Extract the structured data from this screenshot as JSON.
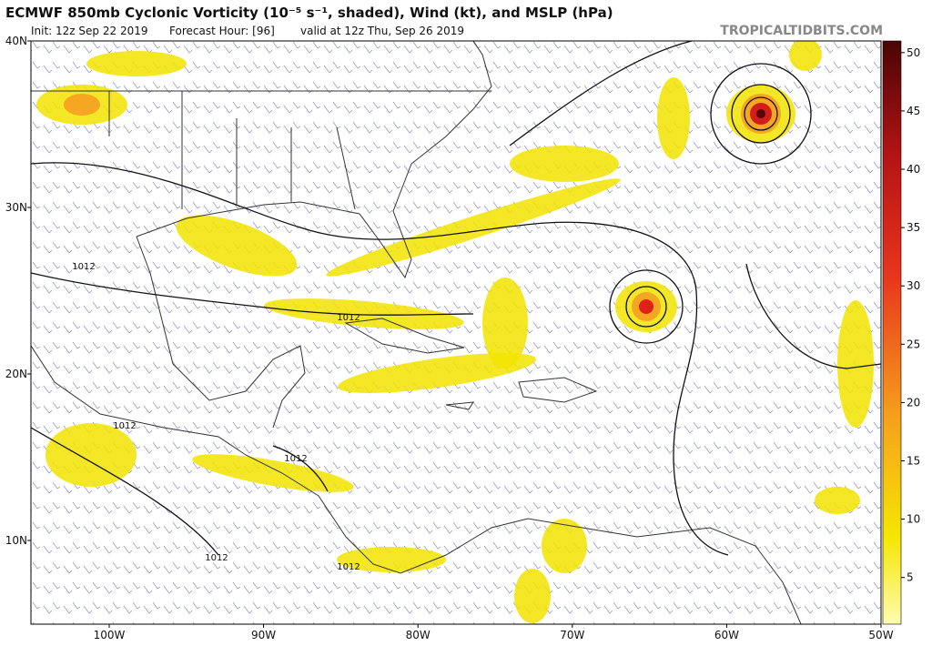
{
  "header": {
    "title": "ECMWF 850mb Cyclonic Vorticity (10⁻⁵ s⁻¹, shaded), Wind (kt), and MSLP (hPa)",
    "init": "Init: 12z Sep 22 2019",
    "forecast_hour": "Forecast Hour: [96]",
    "valid": "valid at 12z Thu, Sep 26 2019",
    "site": "TROPICALTIDBITS.COM"
  },
  "map": {
    "lat_labels": [
      "40N",
      "30N",
      "20N",
      "10N"
    ],
    "lon_labels": [
      "100W",
      "90W",
      "80W",
      "70W",
      "60W",
      "50W"
    ],
    "contour_labels": [
      "1012",
      "1012",
      "1012",
      "1012",
      "1012",
      "1012"
    ]
  },
  "colorbar": {
    "range": [
      1,
      51
    ],
    "ticks": [
      5,
      10,
      15,
      20,
      25,
      30,
      35,
      40,
      45,
      50
    ]
  }
}
